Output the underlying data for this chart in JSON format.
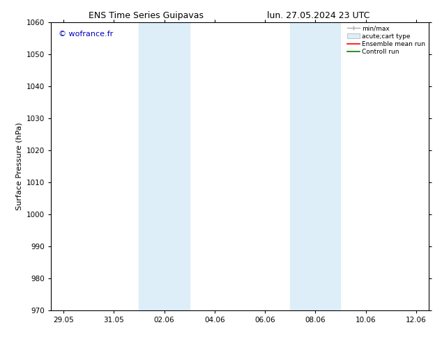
{
  "title_left": "ENS Time Series Guipavas",
  "title_right": "lun. 27.05.2024 23 UTC",
  "ylabel": "Surface Pressure (hPa)",
  "ylim": [
    970,
    1060
  ],
  "yticks": [
    970,
    980,
    990,
    1000,
    1010,
    1020,
    1030,
    1040,
    1050,
    1060
  ],
  "xtick_labels": [
    "29.05",
    "31.05",
    "02.06",
    "04.06",
    "06.06",
    "08.06",
    "10.06",
    "12.06"
  ],
  "xtick_positions": [
    0,
    2,
    4,
    6,
    8,
    10,
    12,
    14
  ],
  "xlim_days": [
    -0.5,
    14.5
  ],
  "shade_bands": [
    {
      "x_start": 3.0,
      "x_end": 5.0
    },
    {
      "x_start": 9.0,
      "x_end": 11.0
    }
  ],
  "shade_color": "#ddeef8",
  "watermark_text": "© wofrance.fr",
  "watermark_color": "#0000bb",
  "legend_labels": [
    "min/max",
    "acute;cart type",
    "Ensemble mean run",
    "Controll run"
  ],
  "legend_colors": [
    "#aaaaaa",
    "#ddeef8",
    "#ff0000",
    "#008000"
  ],
  "bg_color": "#ffffff",
  "axis_bg_color": "#ffffff",
  "grid_color": "#cccccc",
  "title_fontsize": 9,
  "label_fontsize": 8,
  "tick_fontsize": 7.5,
  "watermark_fontsize": 8,
  "legend_fontsize": 6.5
}
